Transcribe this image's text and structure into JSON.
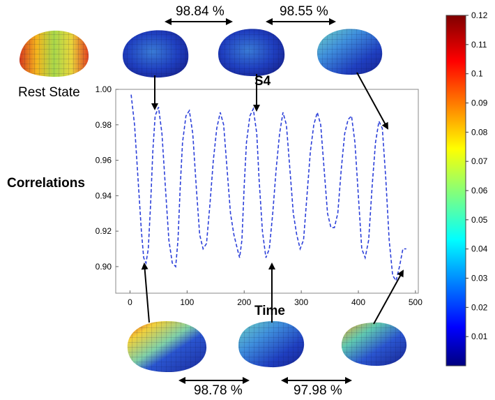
{
  "figure": {
    "rest_state_label": "Rest State",
    "similarities_top": [
      "98.84 %",
      "98.55 %"
    ],
    "similarities_bottom": [
      "98.78 %",
      "97.98 %"
    ]
  },
  "colorbar": {
    "ticks": [
      "0.12",
      "0.11",
      "0.1",
      "0.09",
      "0.08",
      "0.07",
      "0.06",
      "0.05",
      "0.04",
      "0.03",
      "0.02",
      "0.01"
    ],
    "range": [
      0.0,
      0.12
    ]
  },
  "chart_data": {
    "type": "line",
    "title": "S4",
    "xlabel": "Time",
    "ylabel": "Correlations",
    "xlim": [
      -25,
      505
    ],
    "ylim": [
      0.885,
      1.0
    ],
    "xticks": [
      0,
      100,
      200,
      300,
      400,
      500
    ],
    "yticks": [
      0.9,
      0.92,
      0.94,
      0.96,
      0.98,
      1.0
    ],
    "ytick_labels": [
      "0.90",
      "0.92",
      "0.94",
      "0.96",
      "0.98",
      "1.00"
    ],
    "grid": false,
    "line_style": "dashed",
    "line_color": "#2b3fd9",
    "series": [
      {
        "x": [
          2,
          8,
          14,
          20,
          24,
          28,
          32,
          36,
          40,
          44,
          50,
          56,
          62,
          68,
          74,
          80,
          84,
          88,
          92,
          98,
          104,
          110,
          116,
          122,
          128,
          134,
          140,
          146,
          152,
          158,
          164,
          170,
          176,
          182,
          188,
          192,
          196,
          200,
          204,
          210,
          216,
          222,
          226,
          232,
          238,
          244,
          250,
          256,
          262,
          268,
          274,
          280,
          286,
          292,
          298,
          304,
          310,
          316,
          322,
          328,
          334,
          340,
          346,
          352,
          358,
          364,
          370,
          376,
          382,
          388,
          394,
          400,
          406,
          412,
          418,
          424,
          430,
          436,
          442,
          448,
          454,
          460,
          466,
          472,
          478,
          484
        ],
        "y": [
          0.997,
          0.98,
          0.95,
          0.92,
          0.905,
          0.902,
          0.91,
          0.935,
          0.965,
          0.985,
          0.99,
          0.975,
          0.945,
          0.915,
          0.902,
          0.9,
          0.915,
          0.945,
          0.97,
          0.985,
          0.988,
          0.975,
          0.945,
          0.918,
          0.91,
          0.913,
          0.935,
          0.96,
          0.978,
          0.987,
          0.98,
          0.955,
          0.93,
          0.918,
          0.91,
          0.905,
          0.915,
          0.945,
          0.97,
          0.985,
          0.989,
          0.975,
          0.95,
          0.92,
          0.905,
          0.91,
          0.93,
          0.955,
          0.975,
          0.987,
          0.98,
          0.955,
          0.93,
          0.918,
          0.91,
          0.915,
          0.94,
          0.965,
          0.98,
          0.987,
          0.98,
          0.955,
          0.93,
          0.922,
          0.922,
          0.93,
          0.955,
          0.975,
          0.983,
          0.985,
          0.97,
          0.94,
          0.91,
          0.905,
          0.915,
          0.945,
          0.97,
          0.982,
          0.978,
          0.95,
          0.915,
          0.895,
          0.892,
          0.9,
          0.91,
          0.91
        ]
      }
    ]
  }
}
